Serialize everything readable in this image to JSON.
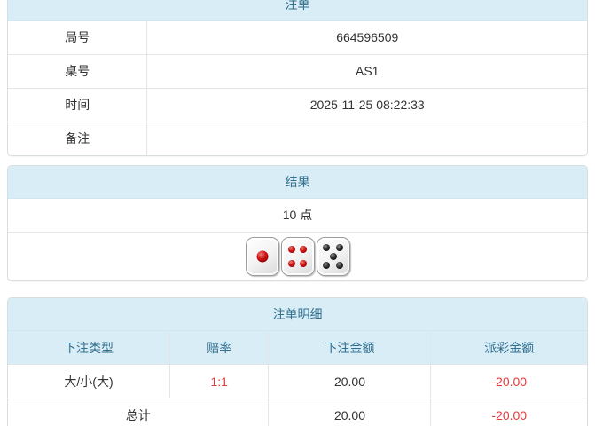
{
  "colors": {
    "header_bg": "#d9edf7",
    "header_text": "#31708f",
    "border": "#e3e6e8",
    "body_text": "#333333",
    "negative_text": "#e23b3b"
  },
  "panels": {
    "bet": {
      "title": "注单",
      "rows": [
        {
          "label": "局号",
          "value": "664596509"
        },
        {
          "label": "桌号",
          "value": "AS1"
        },
        {
          "label": "时间",
          "value": "2025-11-25 08:22:33"
        },
        {
          "label": "备注",
          "value": ""
        }
      ]
    },
    "result": {
      "title": "结果",
      "points": "10 点",
      "dice": [
        {
          "value": 1,
          "color": "red"
        },
        {
          "value": 4,
          "color": "red"
        },
        {
          "value": 5,
          "color": "black"
        }
      ]
    },
    "detail": {
      "title": "注单明细",
      "columns": [
        "下注类型",
        "赔率",
        "下注金额",
        "派彩金额"
      ],
      "rows": [
        {
          "type": "大/小(大)",
          "odds": "1:1",
          "amount": "20.00",
          "payout": "-20.00"
        }
      ],
      "total": {
        "label": "总计",
        "amount": "20.00",
        "payout": "-20.00"
      }
    }
  }
}
